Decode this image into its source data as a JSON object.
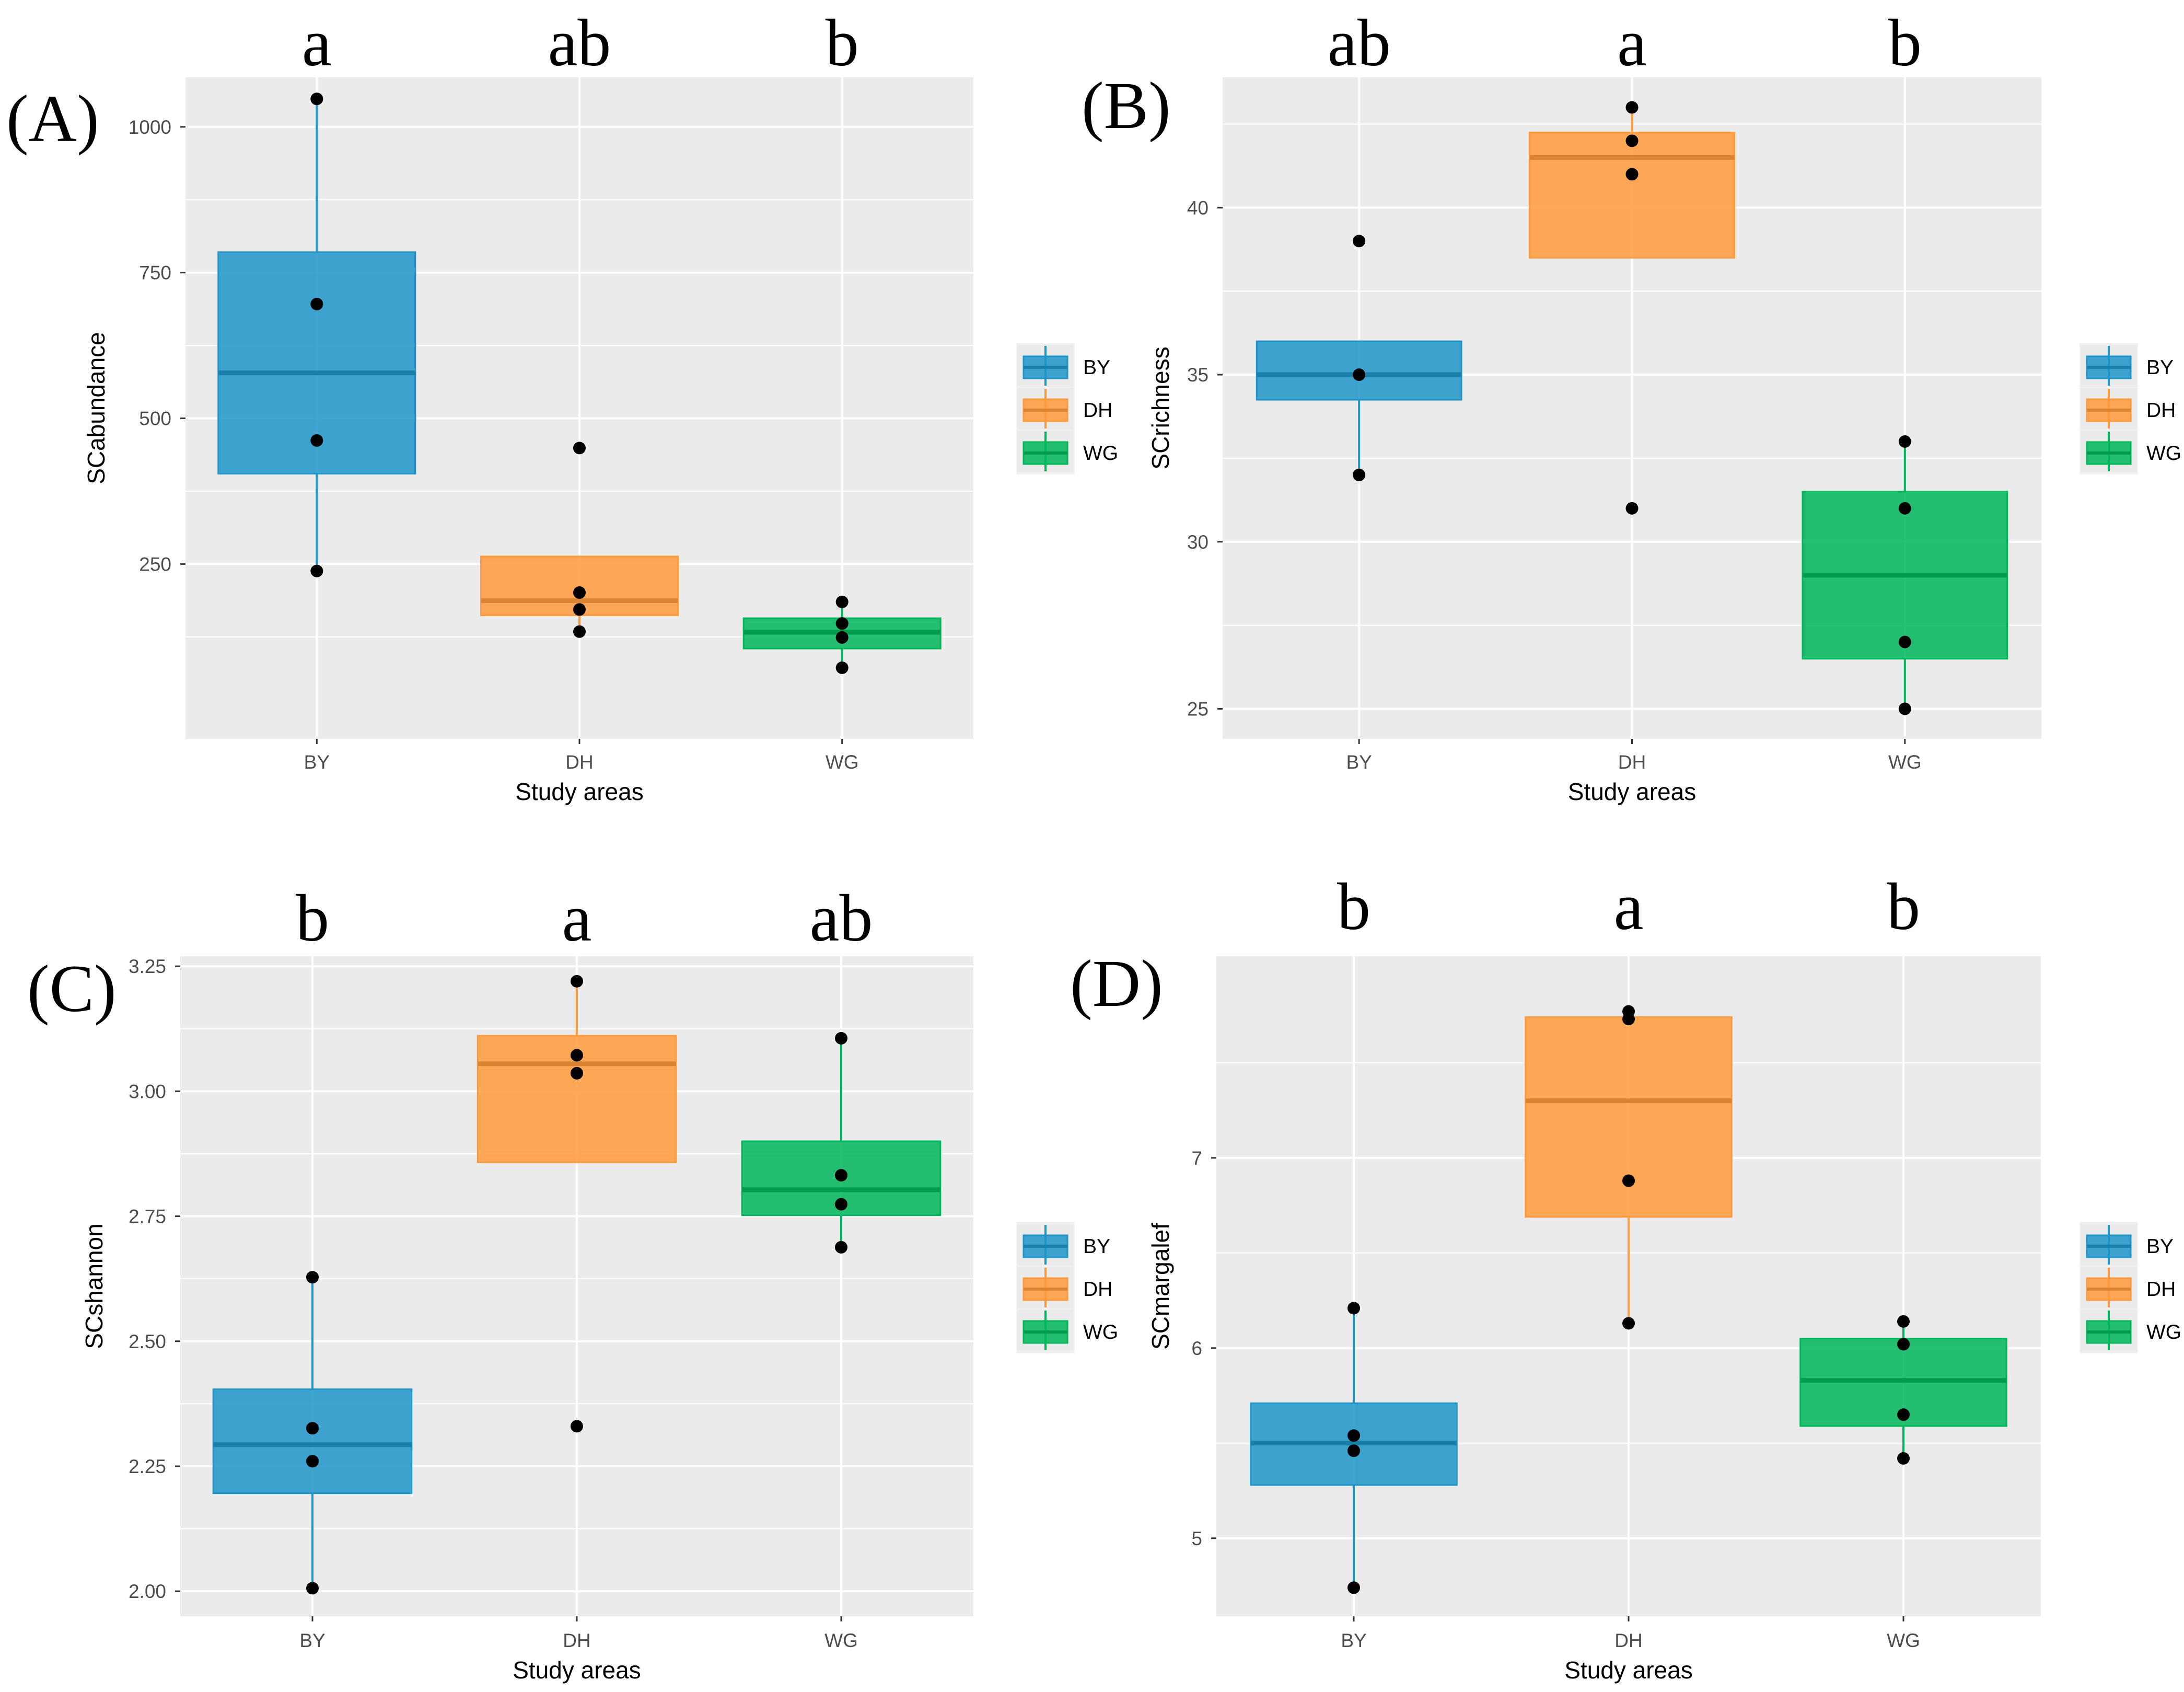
{
  "figure": {
    "background": "#ffffff",
    "panel_background": "#ebebeb",
    "grid_color": "#ffffff"
  },
  "colors": {
    "BY": "#1f95c9",
    "DH": "#ff9a3c",
    "WG": "#00b65a"
  },
  "chart_data": [
    {
      "type": "box",
      "panel_label": "(A)",
      "xlabel": "Study areas",
      "ylabel": "SCabundance",
      "categories": [
        "BY",
        "DH",
        "WG"
      ],
      "ylim": [
        -50,
        1085
      ],
      "yticks": [
        250,
        500,
        750,
        1000
      ],
      "ytick_labels": [
        "250",
        "500",
        "750",
        "1000"
      ],
      "letters": [
        "a",
        "ab",
        "b"
      ],
      "legend_title": "",
      "legend_entries": [
        "BY",
        "DH",
        "WG"
      ],
      "boxes": [
        {
          "category": "BY",
          "q1": 405,
          "median": 578,
          "q3": 785,
          "whisker_low": 238,
          "whisker_high": 1048,
          "points": [
            1048,
            696,
            462,
            238
          ]
        },
        {
          "category": "DH",
          "q1": 162,
          "median": 187,
          "q3": 263,
          "whisker_low": 134,
          "whisker_high": 263,
          "points": [
            449,
            201,
            172,
            134
          ]
        },
        {
          "category": "WG",
          "q1": 105,
          "median": 133,
          "q3": 157,
          "whisker_low": 72,
          "whisker_high": 185,
          "points": [
            185,
            148,
            124,
            72
          ]
        }
      ]
    },
    {
      "type": "box",
      "panel_label": "(B)",
      "xlabel": "Study areas",
      "ylabel": "SCrichness",
      "categories": [
        "BY",
        "DH",
        "WG"
      ],
      "ylim": [
        24.1,
        43.9
      ],
      "yticks": [
        25,
        30,
        35,
        40
      ],
      "ytick_labels": [
        "25",
        "30",
        "35",
        "40"
      ],
      "letters": [
        "ab",
        "a",
        "b"
      ],
      "legend_title": "",
      "legend_entries": [
        "BY",
        "DH",
        "WG"
      ],
      "boxes": [
        {
          "category": "BY",
          "q1": 34.25,
          "median": 35,
          "q3": 36,
          "whisker_low": 32,
          "whisker_high": 36,
          "points": [
            39,
            35,
            32
          ]
        },
        {
          "category": "DH",
          "q1": 38.5,
          "median": 41.5,
          "q3": 42.25,
          "whisker_low": 38.5,
          "whisker_high": 43,
          "points": [
            43,
            42,
            41,
            31
          ]
        },
        {
          "category": "WG",
          "q1": 26.5,
          "median": 29,
          "q3": 31.5,
          "whisker_low": 25,
          "whisker_high": 33,
          "points": [
            33,
            31,
            27,
            25
          ]
        }
      ]
    },
    {
      "type": "box",
      "panel_label": "(C)",
      "xlabel": "Study areas",
      "ylabel": "SCshannon",
      "categories": [
        "BY",
        "DH",
        "WG"
      ],
      "ylim": [
        1.95,
        3.27
      ],
      "yticks": [
        2.0,
        2.25,
        2.5,
        2.75,
        3.0,
        3.25
      ],
      "ytick_labels": [
        "2.00",
        "2.25",
        "2.50",
        "2.75",
        "3.00",
        "3.25"
      ],
      "letters": [
        "b",
        "a",
        "ab"
      ],
      "legend_title": "",
      "legend_entries": [
        "BY",
        "DH",
        "WG"
      ],
      "boxes": [
        {
          "category": "BY",
          "q1": 2.196,
          "median": 2.293,
          "q3": 2.404,
          "whisker_low": 2.006,
          "whisker_high": 2.628,
          "points": [
            2.628,
            2.326,
            2.26,
            2.006
          ]
        },
        {
          "category": "DH",
          "q1": 2.858,
          "median": 3.055,
          "q3": 3.111,
          "whisker_low": 2.858,
          "whisker_high": 3.22,
          "points": [
            3.22,
            3.072,
            3.036,
            2.33
          ]
        },
        {
          "category": "WG",
          "q1": 2.752,
          "median": 2.803,
          "q3": 2.9,
          "whisker_low": 2.688,
          "whisker_high": 3.106,
          "points": [
            3.106,
            2.832,
            2.774,
            2.688
          ]
        }
      ]
    },
    {
      "type": "box",
      "panel_label": "(D)",
      "xlabel": "Study areas",
      "ylabel": "SCmargalef",
      "categories": [
        "BY",
        "DH",
        "WG"
      ],
      "ylim": [
        4.59,
        8.06
      ],
      "yticks": [
        5,
        6,
        7
      ],
      "ytick_labels": [
        "5",
        "6",
        "7"
      ],
      "letters": [
        "b",
        "a",
        "b"
      ],
      "legend_title": "",
      "legend_entries": [
        "BY",
        "DH",
        "WG"
      ],
      "boxes": [
        {
          "category": "BY",
          "q1": 5.28,
          "median": 5.5,
          "q3": 5.71,
          "whisker_low": 4.74,
          "whisker_high": 6.21,
          "points": [
            6.21,
            5.54,
            5.46,
            4.74
          ]
        },
        {
          "category": "DH",
          "q1": 6.69,
          "median": 7.3,
          "q3": 7.74,
          "whisker_low": 6.13,
          "whisker_high": 7.77,
          "points": [
            7.77,
            7.73,
            6.88,
            6.13
          ]
        },
        {
          "category": "WG",
          "q1": 5.59,
          "median": 5.83,
          "q3": 6.05,
          "whisker_low": 5.42,
          "whisker_high": 6.14,
          "points": [
            6.14,
            6.02,
            5.65,
            5.42
          ]
        }
      ]
    }
  ]
}
